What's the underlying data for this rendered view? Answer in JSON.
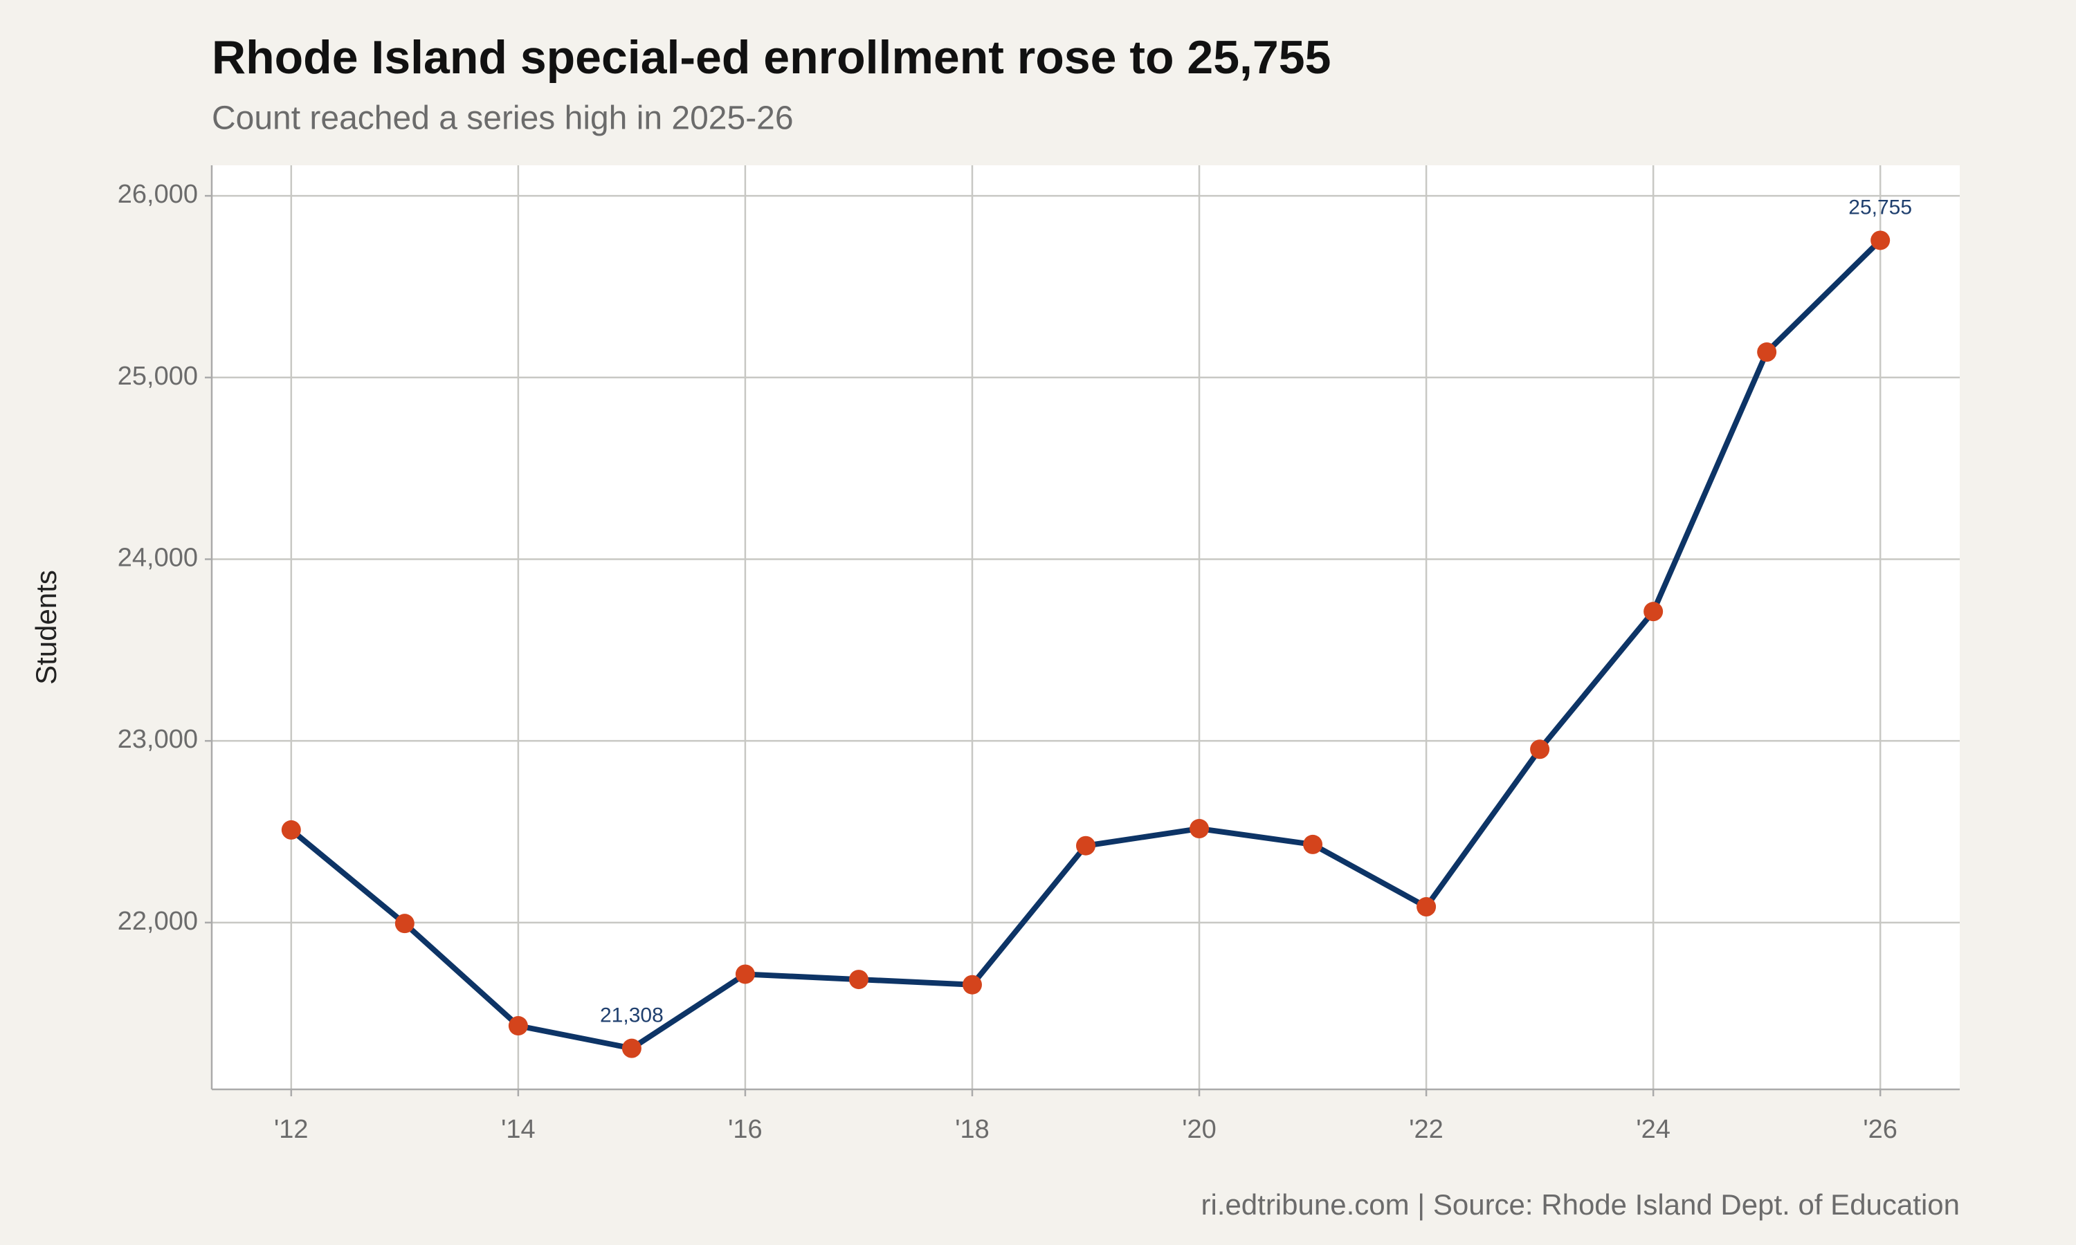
{
  "chart_data": {
    "type": "line",
    "title": "Rhode Island special-ed enrollment rose to 25,755",
    "subtitle": "Count reached a series high in 2025-26",
    "y_label": "Students",
    "source": "ri.edtribune.com | Source: Rhode Island Dept. of Education",
    "x": [
      2012,
      2013,
      2014,
      2015,
      2016,
      2017,
      2018,
      2019,
      2020,
      2021,
      2022,
      2023,
      2024,
      2025,
      2026
    ],
    "values": [
      22510,
      21995,
      21432,
      21308,
      21716,
      21687,
      21658,
      22423,
      22517,
      22430,
      22087,
      22954,
      23712,
      25140,
      25755
    ],
    "value_labels": [
      null,
      null,
      null,
      "21,308",
      null,
      null,
      null,
      null,
      null,
      null,
      null,
      null,
      null,
      null,
      "25,755"
    ],
    "line_color": "#0d3466",
    "marker_color": "#d4441c",
    "label_color": "#1f3f6e",
    "xlim": [
      2011.3,
      2026.7
    ],
    "ylim": [
      21082,
      26168
    ],
    "xticks": [
      {
        "value": 2012,
        "label": "'12"
      },
      {
        "value": 2014,
        "label": "'14"
      },
      {
        "value": 2016,
        "label": "'16"
      },
      {
        "value": 2018,
        "label": "'18"
      },
      {
        "value": 2020,
        "label": "'20"
      },
      {
        "value": 2022,
        "label": "'22"
      },
      {
        "value": 2024,
        "label": "'24"
      },
      {
        "value": 2026,
        "label": "'26"
      }
    ],
    "yticks": [
      {
        "value": 22000,
        "label": "22,000"
      },
      {
        "value": 23000,
        "label": "23,000"
      },
      {
        "value": 24000,
        "label": "24,000"
      },
      {
        "value": 25000,
        "label": "25,000"
      },
      {
        "value": 26000,
        "label": "26,000"
      }
    ],
    "grid": true
  }
}
